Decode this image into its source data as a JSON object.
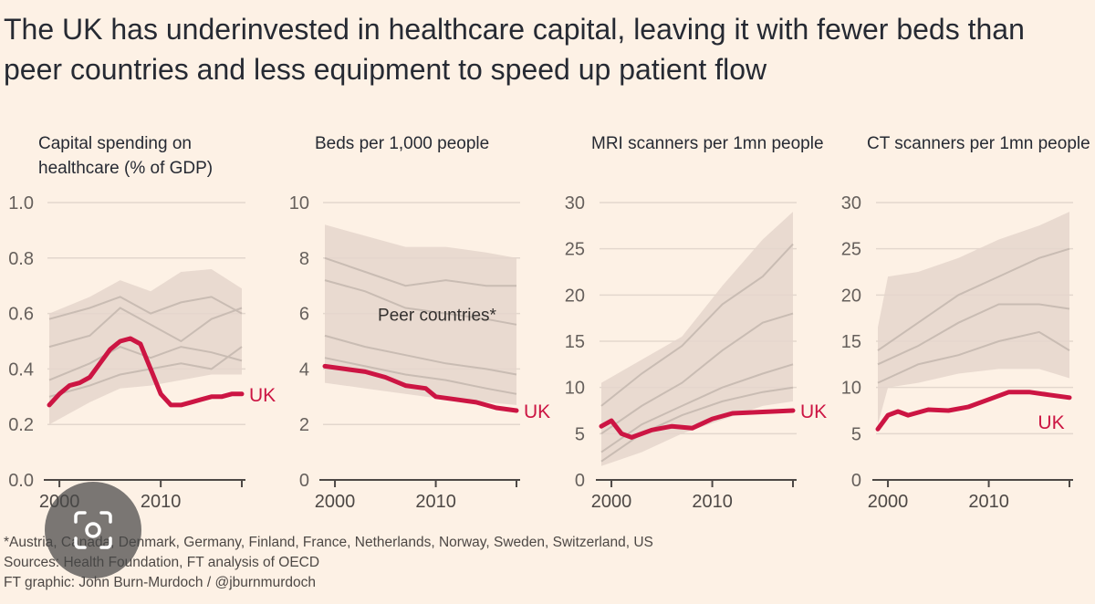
{
  "headline": "The UK has underinvested in healthcare capital, leaving it with fewer beds than peer countries and less equipment to speed up patient flow",
  "colors": {
    "background": "#fdf1e5",
    "uk_line": "#cc1543",
    "peer_band": "#e5d6cc",
    "peer_lines": "#c9bcb3",
    "grid": "#e3d7cd"
  },
  "chart_data": [
    {
      "type": "line",
      "title": "Capital spending on\nhealthcare (% of GDP)",
      "ylim": [
        0,
        1.0
      ],
      "yticks": [
        "0.0",
        "0.2",
        "0.4",
        "0.6",
        "0.8",
        "1.0"
      ],
      "xlim": [
        1999,
        2018
      ],
      "xticks": [
        "2000",
        "2010"
      ],
      "annotation": "",
      "series": [
        {
          "name": "UK",
          "x": [
            1999,
            2000,
            2001,
            2002,
            2003,
            2004,
            2005,
            2006,
            2007,
            2008,
            2009,
            2010,
            2011,
            2012,
            2013,
            2014,
            2015,
            2016,
            2017,
            2018
          ],
          "values": [
            0.27,
            0.31,
            0.34,
            0.35,
            0.37,
            0.42,
            0.47,
            0.5,
            0.51,
            0.49,
            0.4,
            0.31,
            0.27,
            0.27,
            0.28,
            0.29,
            0.3,
            0.3,
            0.31,
            0.31
          ]
        }
      ],
      "peer_band": {
        "x": [
          1999,
          2003,
          2006,
          2009,
          2012,
          2015,
          2018
        ],
        "low": [
          0.2,
          0.28,
          0.33,
          0.34,
          0.36,
          0.38,
          0.38
        ],
        "high": [
          0.6,
          0.66,
          0.72,
          0.68,
          0.75,
          0.76,
          0.69
        ]
      },
      "peer_lines": [
        {
          "x": [
            1999,
            2003,
            2006,
            2009,
            2012,
            2015,
            2018
          ],
          "values": [
            0.58,
            0.62,
            0.66,
            0.6,
            0.64,
            0.66,
            0.6
          ]
        },
        {
          "x": [
            1999,
            2003,
            2006,
            2009,
            2012,
            2015,
            2018
          ],
          "values": [
            0.48,
            0.52,
            0.62,
            0.56,
            0.5,
            0.58,
            0.62
          ]
        },
        {
          "x": [
            1999,
            2003,
            2006,
            2009,
            2012,
            2015,
            2018
          ],
          "values": [
            0.36,
            0.42,
            0.48,
            0.44,
            0.48,
            0.46,
            0.43
          ]
        },
        {
          "x": [
            1999,
            2003,
            2006,
            2009,
            2012,
            2015,
            2018
          ],
          "values": [
            0.3,
            0.34,
            0.38,
            0.4,
            0.42,
            0.4,
            0.48
          ]
        }
      ]
    },
    {
      "type": "line",
      "title": "Beds per 1,000 people",
      "ylim": [
        0,
        10
      ],
      "yticks": [
        "0",
        "2",
        "4",
        "6",
        "8",
        "10"
      ],
      "xlim": [
        1999,
        2018
      ],
      "xticks": [
        "2000",
        "2010"
      ],
      "annotation": "Peer countries*",
      "series": [
        {
          "name": "UK",
          "x": [
            1999,
            2001,
            2003,
            2005,
            2007,
            2009,
            2010,
            2012,
            2014,
            2016,
            2018
          ],
          "values": [
            4.1,
            4.0,
            3.9,
            3.7,
            3.4,
            3.3,
            3.0,
            2.9,
            2.8,
            2.6,
            2.5
          ]
        }
      ],
      "peer_band": {
        "x": [
          1999,
          2003,
          2007,
          2011,
          2015,
          2018
        ],
        "low": [
          3.5,
          3.3,
          3.1,
          2.9,
          2.8,
          2.7
        ],
        "high": [
          9.2,
          8.8,
          8.4,
          8.4,
          8.2,
          8.0
        ]
      },
      "peer_lines": [
        {
          "x": [
            1999,
            2003,
            2007,
            2011,
            2015,
            2018
          ],
          "values": [
            8.0,
            7.5,
            7.0,
            7.2,
            7.0,
            7.0
          ]
        },
        {
          "x": [
            1999,
            2003,
            2007,
            2011,
            2015,
            2018
          ],
          "values": [
            7.2,
            6.8,
            6.2,
            6.0,
            5.8,
            5.6
          ]
        },
        {
          "x": [
            1999,
            2003,
            2007,
            2011,
            2015,
            2018
          ],
          "values": [
            5.2,
            4.8,
            4.5,
            4.2,
            4.0,
            3.8
          ]
        },
        {
          "x": [
            1999,
            2003,
            2007,
            2011,
            2015,
            2018
          ],
          "values": [
            4.4,
            4.1,
            3.8,
            3.6,
            3.3,
            3.1
          ]
        }
      ]
    },
    {
      "type": "line",
      "title": "MRI scanners per 1mn people",
      "ylim": [
        0,
        30
      ],
      "yticks": [
        "0",
        "5",
        "10",
        "15",
        "20",
        "25",
        "30"
      ],
      "xlim": [
        1999,
        2018
      ],
      "xticks": [
        "2000",
        "2010"
      ],
      "annotation": "",
      "series": [
        {
          "name": "UK",
          "x": [
            1999,
            2000,
            2001,
            2002,
            2004,
            2006,
            2008,
            2010,
            2012,
            2014,
            2016,
            2018
          ],
          "values": [
            5.8,
            6.4,
            5.0,
            4.6,
            5.4,
            5.8,
            5.6,
            6.6,
            7.2,
            7.3,
            7.4,
            7.5
          ]
        }
      ],
      "peer_band": {
        "x": [
          1999,
          2003,
          2007,
          2011,
          2015,
          2018
        ],
        "low": [
          1.5,
          3.0,
          5.0,
          6.5,
          8.0,
          8.5
        ],
        "high": [
          10.5,
          13.0,
          15.5,
          21.0,
          26.0,
          29.0
        ]
      },
      "peer_lines": [
        {
          "x": [
            1999,
            2003,
            2007,
            2011,
            2015,
            2018
          ],
          "values": [
            8.0,
            11.5,
            14.5,
            19.0,
            22.0,
            25.5
          ]
        },
        {
          "x": [
            1999,
            2003,
            2007,
            2011,
            2015,
            2018
          ],
          "values": [
            5.0,
            8.0,
            10.5,
            14.0,
            17.0,
            18.0
          ]
        },
        {
          "x": [
            1999,
            2003,
            2007,
            2011,
            2015,
            2018
          ],
          "values": [
            3.0,
            6.0,
            8.0,
            10.0,
            11.5,
            12.5
          ]
        },
        {
          "x": [
            1999,
            2003,
            2007,
            2011,
            2015,
            2018
          ],
          "values": [
            2.0,
            5.0,
            7.0,
            8.5,
            9.5,
            10.0
          ]
        }
      ]
    },
    {
      "type": "line",
      "title": "CT scanners per 1mn people",
      "ylim": [
        0,
        30
      ],
      "yticks": [
        "0",
        "5",
        "10",
        "15",
        "20",
        "25",
        "30"
      ],
      "xlim": [
        1999,
        2018
      ],
      "xticks": [
        "2000",
        "2010"
      ],
      "annotation": "",
      "series": [
        {
          "name": "UK",
          "x": [
            1999,
            2000,
            2001,
            2002,
            2004,
            2006,
            2008,
            2010,
            2012,
            2014,
            2016,
            2018
          ],
          "values": [
            5.5,
            7.0,
            7.4,
            7.0,
            7.6,
            7.5,
            7.9,
            8.7,
            9.5,
            9.5,
            9.2,
            8.9
          ]
        }
      ],
      "peer_band": {
        "x": [
          1999,
          2000,
          2003,
          2007,
          2011,
          2015,
          2018
        ],
        "low": [
          6.0,
          10.0,
          10.5,
          11.5,
          12.0,
          12.0,
          11.0
        ],
        "high": [
          16.5,
          22.0,
          22.5,
          24.0,
          26.0,
          27.5,
          29.0
        ]
      },
      "peer_lines": [
        {
          "x": [
            1999,
            2003,
            2007,
            2011,
            2015,
            2018
          ],
          "values": [
            14.0,
            17.0,
            20.0,
            22.0,
            24.0,
            25.0
          ]
        },
        {
          "x": [
            1999,
            2003,
            2007,
            2011,
            2015,
            2018
          ],
          "values": [
            12.5,
            14.5,
            17.0,
            19.0,
            19.0,
            18.5
          ]
        },
        {
          "x": [
            1999,
            2003,
            2007,
            2011,
            2015,
            2018
          ],
          "values": [
            10.5,
            12.5,
            13.5,
            15.0,
            16.0,
            14.0
          ]
        }
      ]
    }
  ],
  "footer": {
    "countries_note": "*Austria, Canada, Denmark, Germany, Finland, France, Netherlands, Norway, Sweden, Switzerland, US",
    "sources": "Sources: Health Foundation, FT analysis of OECD",
    "credit": "FT graphic: John Burn-Murdoch / @jburnmurdoch"
  }
}
